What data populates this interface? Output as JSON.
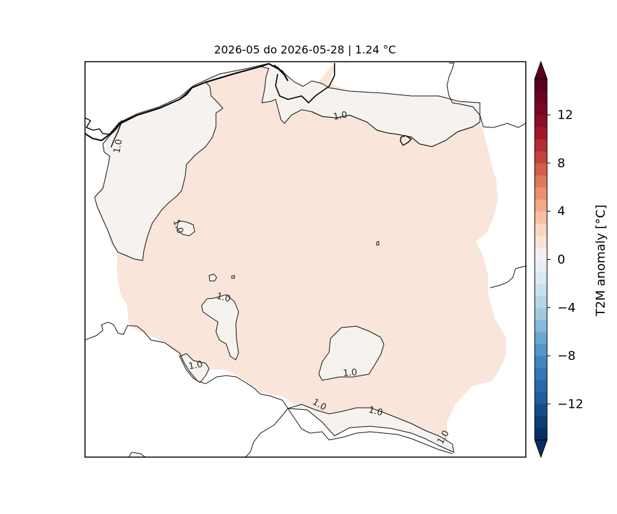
{
  "figure": {
    "title": "2026-05 do 2026-05-28 | 1.24 °C"
  },
  "map": {
    "variable": "T2M anomaly",
    "domain_mean_anomaly": 1.24,
    "contour_level": 1.0,
    "contour_labels": [
      "1.0",
      "1.0",
      "1.0",
      "1.0",
      "1.0",
      "1.0",
      "1.0",
      "1.0",
      "1.0"
    ],
    "fill_colors": {
      "above_1": "#f9e5d9",
      "below_1": "#f5f2ef",
      "background": "#ffffff"
    }
  },
  "colorbar": {
    "label": "T2M anomaly [°C]",
    "ticks": [
      "12",
      "8",
      "4",
      "0",
      "−4",
      "−8",
      "−12"
    ],
    "tick_values": [
      12,
      8,
      4,
      0,
      -4,
      -8,
      -12
    ],
    "range": [
      -15,
      15
    ],
    "bins": 30,
    "colormap": "RdBu_r",
    "extend": "both",
    "colors": [
      "#053061",
      "#0b3d73",
      "#154d89",
      "#1f5d9d",
      "#2869ab",
      "#3278b6",
      "#3f86bf",
      "#5497c8",
      "#6aa8d1",
      "#86b9da",
      "#a1cae2",
      "#b6d6e8",
      "#c9e1ee",
      "#dae9f2",
      "#e8f0f5",
      "#f4efed",
      "#f9e2d6",
      "#fbd5c2",
      "#f8c0a5",
      "#f4a988",
      "#ea9070",
      "#de775d",
      "#d25d4c",
      "#c4423d",
      "#b52b33",
      "#a3162c",
      "#8c0d28",
      "#780724",
      "#6a0320",
      "#5b001c"
    ]
  }
}
